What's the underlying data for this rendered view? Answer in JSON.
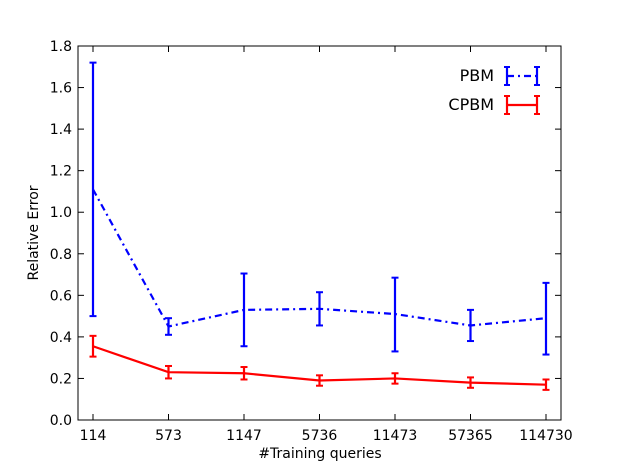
{
  "chart_data": {
    "type": "line",
    "xlabel": "#Training queries",
    "ylabel": "Relative Error",
    "categories": [
      "114",
      "573",
      "1147",
      "5736",
      "11473",
      "57365",
      "114730"
    ],
    "ylim": [
      0.0,
      1.8
    ],
    "yticks": [
      "0.0",
      "0.2",
      "0.4",
      "0.6",
      "0.8",
      "1.0",
      "1.2",
      "1.4",
      "1.6",
      "1.8"
    ],
    "grid": false,
    "legend_position": "top-right",
    "series": [
      {
        "name": "PBM",
        "color": "#0000ff",
        "line_style": "dash-dot",
        "values": [
          1.11,
          0.45,
          0.53,
          0.535,
          0.51,
          0.455,
          0.49
        ],
        "error_low": [
          0.5,
          0.41,
          0.355,
          0.455,
          0.33,
          0.38,
          0.315
        ],
        "error_high": [
          1.72,
          0.49,
          0.705,
          0.615,
          0.685,
          0.53,
          0.66
        ]
      },
      {
        "name": "CPBM",
        "color": "#ff0000",
        "line_style": "solid",
        "values": [
          0.355,
          0.23,
          0.225,
          0.19,
          0.2,
          0.18,
          0.17
        ],
        "error_low": [
          0.305,
          0.2,
          0.195,
          0.165,
          0.175,
          0.155,
          0.145
        ],
        "error_high": [
          0.405,
          0.26,
          0.255,
          0.215,
          0.225,
          0.205,
          0.195
        ]
      }
    ]
  }
}
